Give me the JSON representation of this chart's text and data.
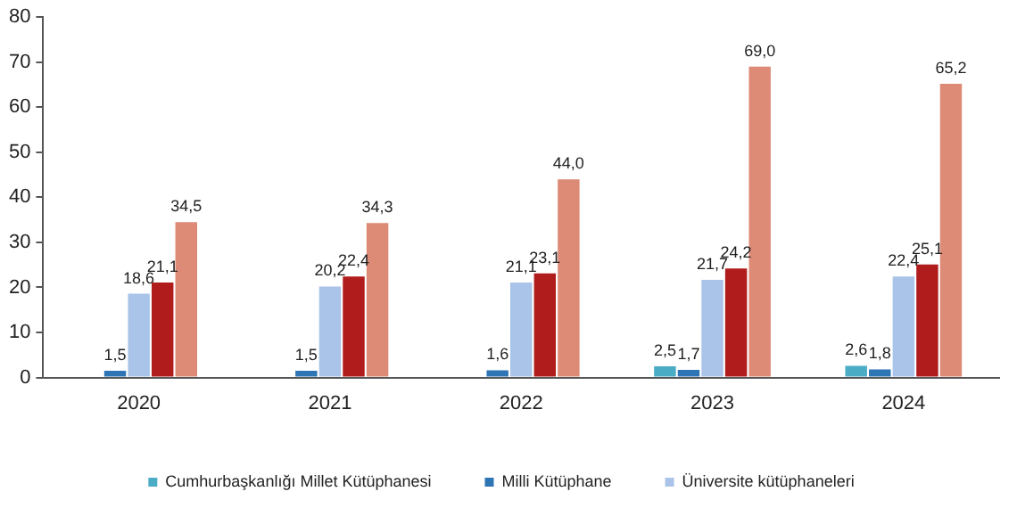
{
  "chart_data": {
    "type": "bar",
    "categories": [
      "2020",
      "2021",
      "2022",
      "2023",
      "2024"
    ],
    "series": [
      {
        "name": "Cumhurbaşkanlığı Millet Kütüphanesi",
        "color": "#4bacc6",
        "values": [
          null,
          null,
          null,
          2.5,
          2.6
        ],
        "value_labels": [
          null,
          null,
          null,
          "2,5",
          "2,6"
        ]
      },
      {
        "name": "Milli Kütüphane",
        "color": "#2e75b6",
        "values": [
          1.5,
          1.5,
          1.6,
          1.7,
          1.8
        ],
        "value_labels": [
          "1,5",
          "1,5",
          "1,6",
          "1,7",
          "1,8"
        ]
      },
      {
        "name": "Üniversite kütüphaneleri",
        "color": "#a9c4e8",
        "values": [
          18.6,
          20.2,
          21.1,
          21.7,
          22.4
        ],
        "value_labels": [
          "18,6",
          "20,2",
          "21,1",
          "21,7",
          "22,4"
        ]
      },
      {
        "color": "#b01c1c",
        "values": [
          21.1,
          22.4,
          23.1,
          24.2,
          25.1
        ],
        "value_labels": [
          "21,1",
          "22,4",
          "23,1",
          "24,2",
          "25,1"
        ]
      },
      {
        "color": "#dd8b76",
        "values": [
          34.5,
          34.3,
          44.0,
          69.0,
          65.2
        ],
        "value_labels": [
          "34,5",
          "34,3",
          "44,0",
          "69,0",
          "65,2"
        ]
      }
    ],
    "ylim": [
      0,
      80
    ],
    "yticks": [
      0,
      10,
      20,
      30,
      40,
      50,
      60,
      70,
      80
    ],
    "grid": false,
    "legend": "bottom"
  }
}
